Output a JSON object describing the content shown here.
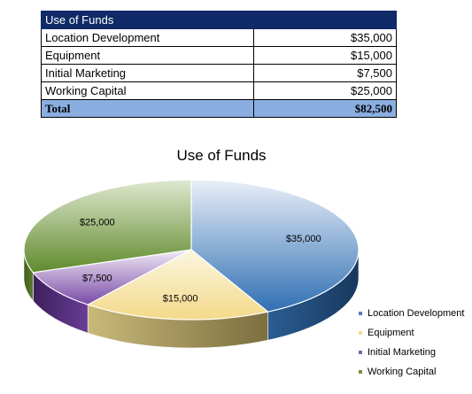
{
  "table": {
    "header": "Use of Funds",
    "rows": [
      {
        "label": "Location Development",
        "value": "$35,000"
      },
      {
        "label": "Equipment",
        "value": "$15,000"
      },
      {
        "label": "Initial Marketing",
        "value": "$7,500"
      },
      {
        "label": "Working Capital",
        "value": "$25,000"
      }
    ],
    "total": {
      "label": "Total",
      "value": "$82,500"
    }
  },
  "chart_data": {
    "type": "pie",
    "title": "Use of Funds",
    "categories": [
      "Location Development",
      "Equipment",
      "Initial Marketing",
      "Working Capital"
    ],
    "values": [
      35000,
      15000,
      7500,
      25000
    ],
    "data_labels": [
      "$35,000",
      "$15,000",
      "$7,500",
      "$25,000"
    ],
    "colors": [
      "#4f81bd",
      "#f5dc8c",
      "#8064a2",
      "#77933c"
    ],
    "legend": "right",
    "style": "3d"
  }
}
